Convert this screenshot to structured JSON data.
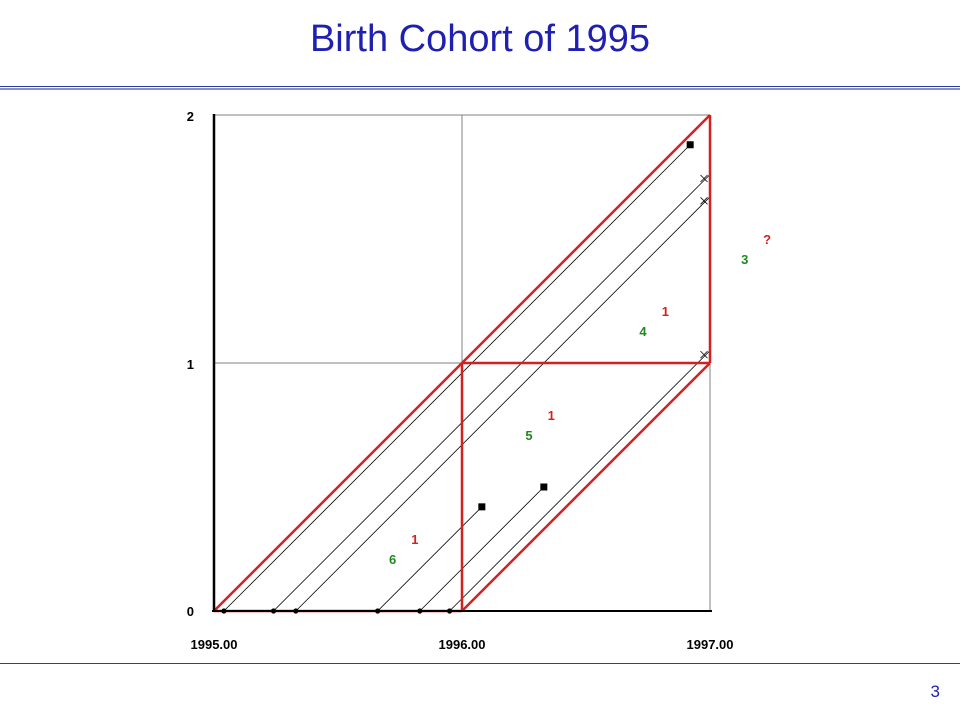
{
  "title": "Birth Cohort of 1995",
  "page_number": "3",
  "axes": {
    "x_ticks": [
      "1995.00",
      "1996.00",
      "1997.00"
    ],
    "y_ticks": [
      "0",
      "1",
      "2"
    ]
  },
  "colors": {
    "title": "#1f1fb0",
    "cohort_outline": "#d42020",
    "census_count": "#1e8a1e",
    "death_count": "#d42020",
    "life_line": "#000000",
    "grid": "#808080"
  },
  "lexis": {
    "x_range": [
      1995.0,
      1997.0
    ],
    "y_range": [
      0,
      2
    ],
    "births": [
      1995.04,
      1995.24,
      1995.33,
      1995.66,
      1995.83,
      1995.95
    ],
    "deaths": [
      {
        "birth": 1995.66,
        "time": 1996.08
      },
      {
        "birth": 1995.83,
        "time": 1996.33
      },
      {
        "birth": 1995.04,
        "time": 1996.92
      }
    ],
    "censored": [
      {
        "birth": 1995.95,
        "time": 1997.0
      },
      {
        "birth": 1995.33,
        "time": 1997.0
      },
      {
        "birth": 1995.24,
        "time": 1997.0
      }
    ],
    "counts": [
      {
        "label": "6",
        "kind": "census",
        "year": 1995.72,
        "age": 0.21
      },
      {
        "label": "1",
        "kind": "death",
        "year": 1995.81,
        "age": 0.29
      },
      {
        "label": "5",
        "kind": "census",
        "year": 1996.27,
        "age": 0.71
      },
      {
        "label": "1",
        "kind": "death",
        "year": 1996.36,
        "age": 0.79
      },
      {
        "label": "4",
        "kind": "census",
        "year": 1996.73,
        "age": 1.13
      },
      {
        "label": "1",
        "kind": "death",
        "year": 1996.82,
        "age": 1.21
      },
      {
        "label": "3",
        "kind": "census",
        "year": 1997.14,
        "age": 1.42
      },
      {
        "label": "?",
        "kind": "death",
        "year": 1997.23,
        "age": 1.5
      }
    ]
  }
}
